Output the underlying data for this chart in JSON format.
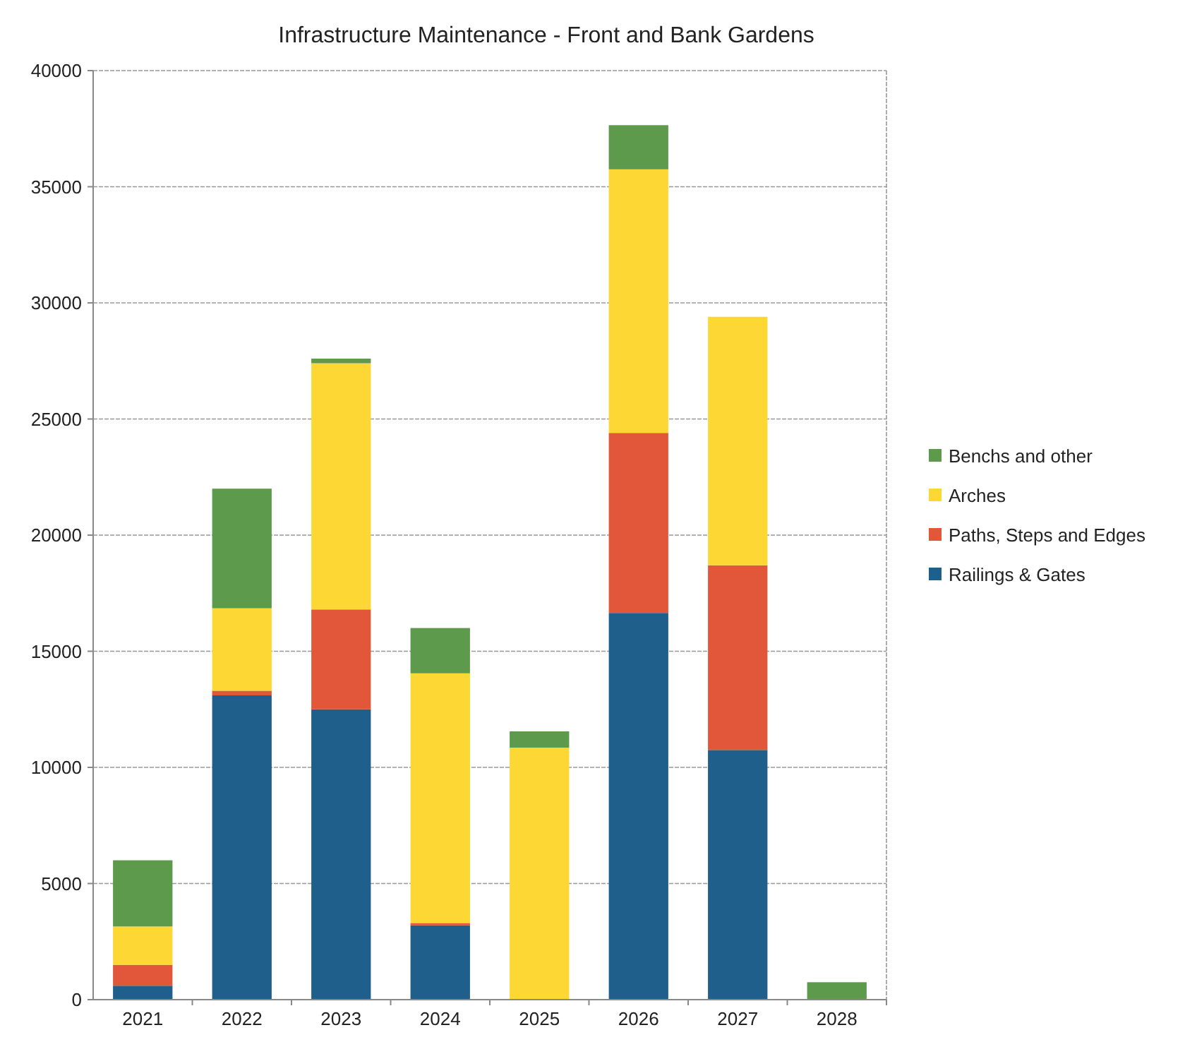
{
  "chart_data": {
    "type": "bar",
    "title": "Infrastructure Maintenance - Front and Bank Gardens",
    "categories": [
      "2021",
      "2022",
      "2023",
      "2024",
      "2025",
      "2026",
      "2027",
      "2028"
    ],
    "stacked": true,
    "series": [
      {
        "name": "Railings & Gates",
        "color": "#1f5f8b",
        "values": [
          600,
          13100,
          12500,
          3200,
          0,
          16650,
          10750,
          0
        ]
      },
      {
        "name": "Paths, Steps and Edges",
        "color": "#e2573a",
        "values": [
          900,
          200,
          4300,
          100,
          0,
          7750,
          7950,
          0
        ]
      },
      {
        "name": "Arches",
        "color": "#fdd835",
        "values": [
          1650,
          3550,
          10600,
          10750,
          10850,
          11350,
          10700,
          0
        ]
      },
      {
        "name": "Benchs and other",
        "color": "#5e9a4c",
        "values": [
          2850,
          5150,
          200,
          1950,
          700,
          1900,
          0,
          750
        ]
      }
    ],
    "ylim": [
      0,
      40000
    ],
    "yticks": [
      0,
      5000,
      10000,
      15000,
      20000,
      25000,
      30000,
      35000,
      40000
    ],
    "grid": "y",
    "legend": "right"
  }
}
